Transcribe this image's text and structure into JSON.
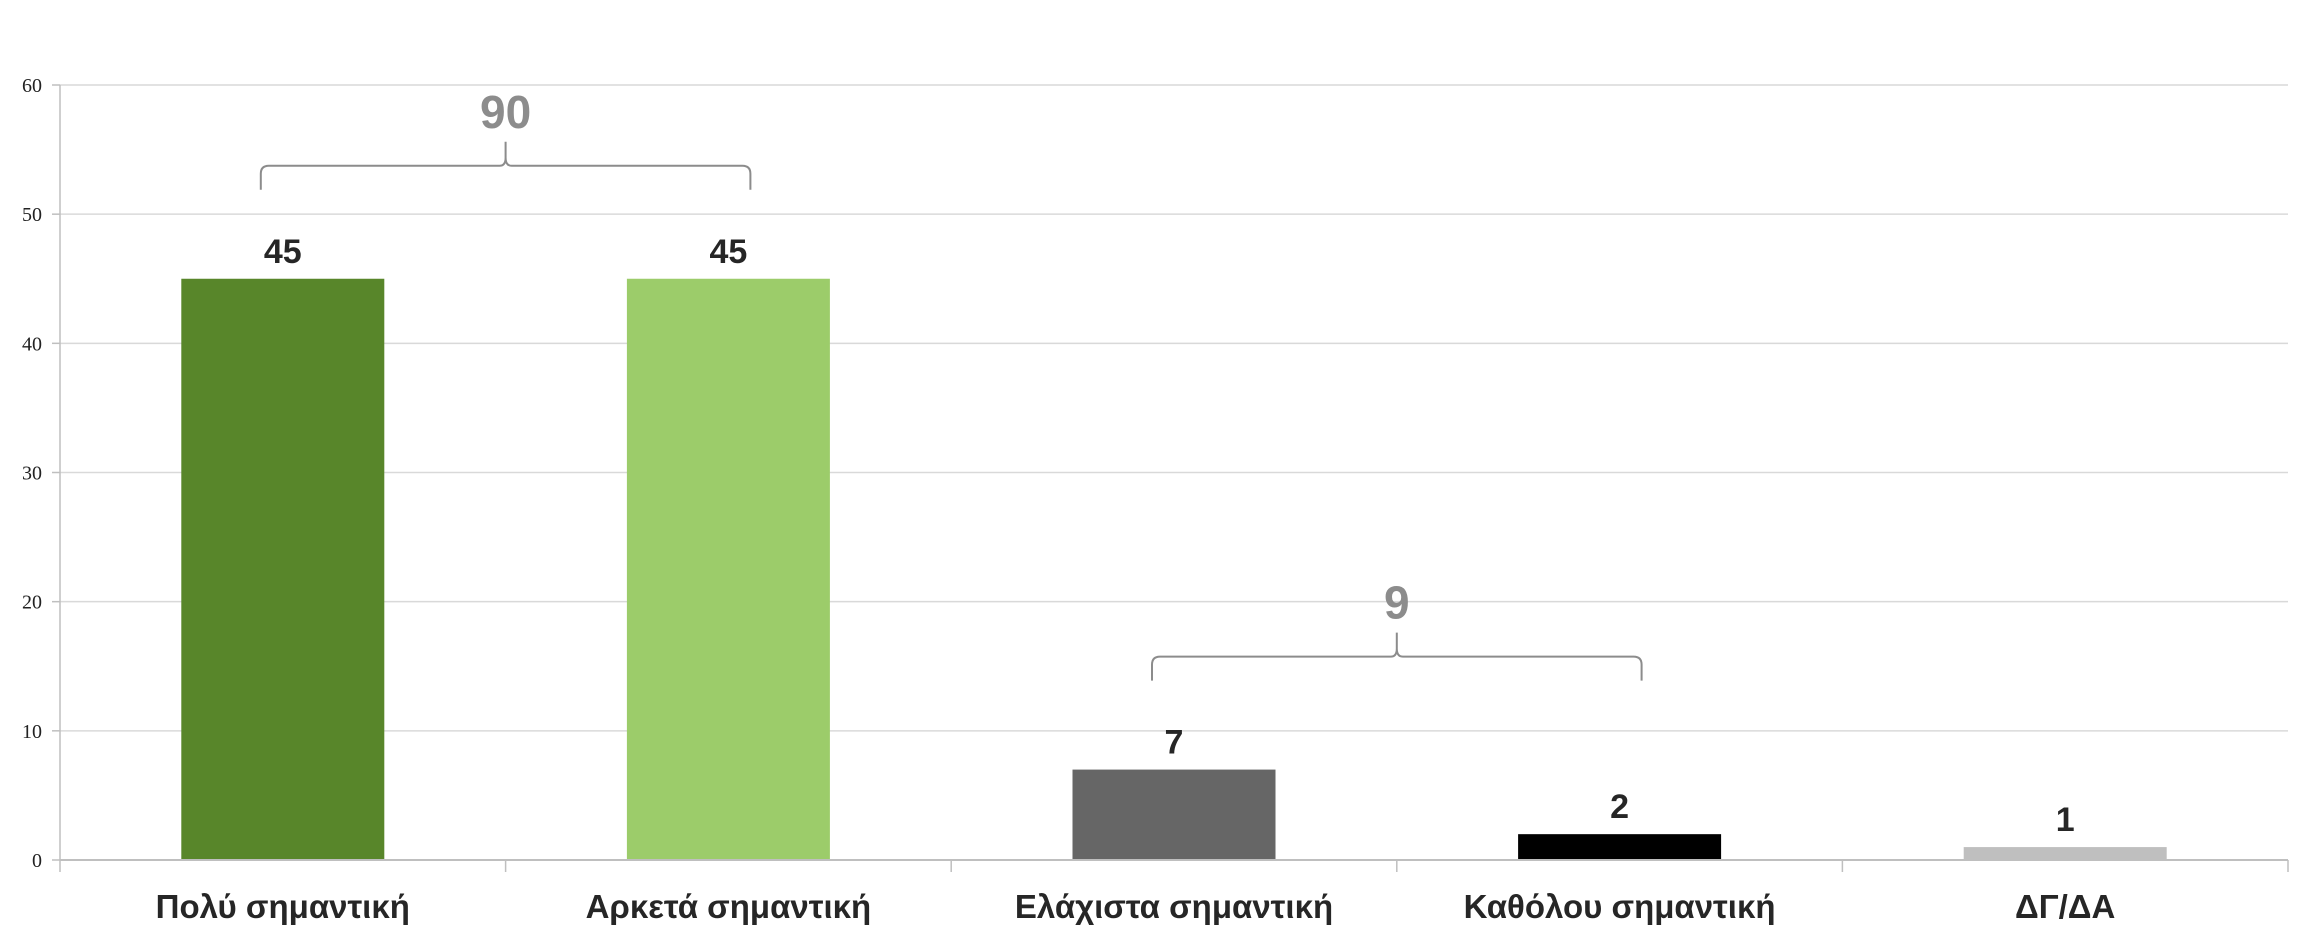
{
  "chart_data": {
    "type": "bar",
    "categories": [
      "Πολύ σημαντική",
      "Αρκετά σημαντική",
      "Ελάχιστα σημαντική",
      "Καθόλου σημαντική",
      "ΔΓ/ΔΑ"
    ],
    "values": [
      45,
      45,
      7,
      2,
      1
    ],
    "colors": [
      "#58862a",
      "#9ccc6a",
      "#666666",
      "#000000",
      "#bfbfbf"
    ],
    "ylim": [
      0,
      60
    ],
    "yticks": [
      0,
      10,
      20,
      30,
      40,
      50,
      60
    ],
    "grid": true,
    "title": "",
    "xlabel": "",
    "ylabel": "",
    "group_annotations": [
      {
        "label": "90",
        "from_category": 0,
        "to_category": 1
      },
      {
        "label": "9",
        "from_category": 2,
        "to_category": 3
      }
    ]
  }
}
